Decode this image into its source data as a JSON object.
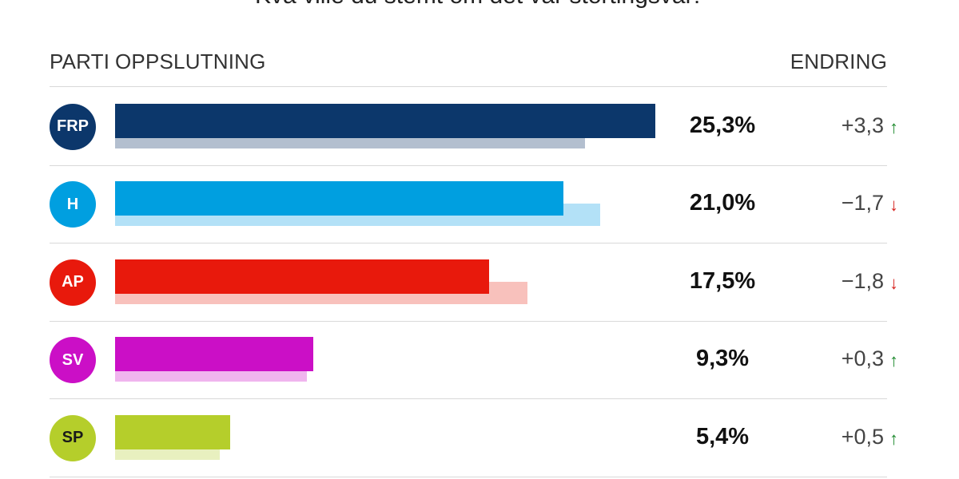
{
  "chart_data": {
    "type": "bar",
    "title": "Kva ville du stemt om det var stortingsval?",
    "headers": {
      "parti": "PARTI",
      "oppslutning": "OPPSLUTNING",
      "endring": "ENDRING"
    },
    "xlim": [
      0,
      25.3
    ],
    "rows": [
      {
        "party": "FRP",
        "value": 25.3,
        "previous": 22.0,
        "value_label": "25,3%",
        "change_label": "+3,3",
        "direction": "up",
        "color": "#0c376b",
        "prev_color": "#b3bfcf",
        "text_color": "#ffffff"
      },
      {
        "party": "H",
        "value": 21.0,
        "previous": 22.7,
        "value_label": "21,0%",
        "change_label": "−1,7",
        "direction": "down",
        "color": "#009fe0",
        "prev_color": "#b3e1f7",
        "text_color": "#ffffff"
      },
      {
        "party": "AP",
        "value": 17.5,
        "previous": 19.3,
        "value_label": "17,5%",
        "change_label": "−1,8",
        "direction": "down",
        "color": "#e8190c",
        "prev_color": "#f8c1bc",
        "text_color": "#ffffff"
      },
      {
        "party": "SV",
        "value": 9.3,
        "previous": 9.0,
        "value_label": "9,3%",
        "change_label": "+0,3",
        "direction": "up",
        "color": "#cb0fc6",
        "prev_color": "#f0b5ee",
        "text_color": "#ffffff"
      },
      {
        "party": "SP",
        "value": 5.4,
        "previous": 4.9,
        "value_label": "5,4%",
        "change_label": "+0,5",
        "direction": "up",
        "color": "#b5ce2b",
        "prev_color": "#e8f0bf",
        "text_color": "#1a1a1a"
      }
    ],
    "arrow_up": "↑",
    "arrow_down": "↓",
    "up_color": "#1e8a2e",
    "down_color": "#d6201c"
  }
}
